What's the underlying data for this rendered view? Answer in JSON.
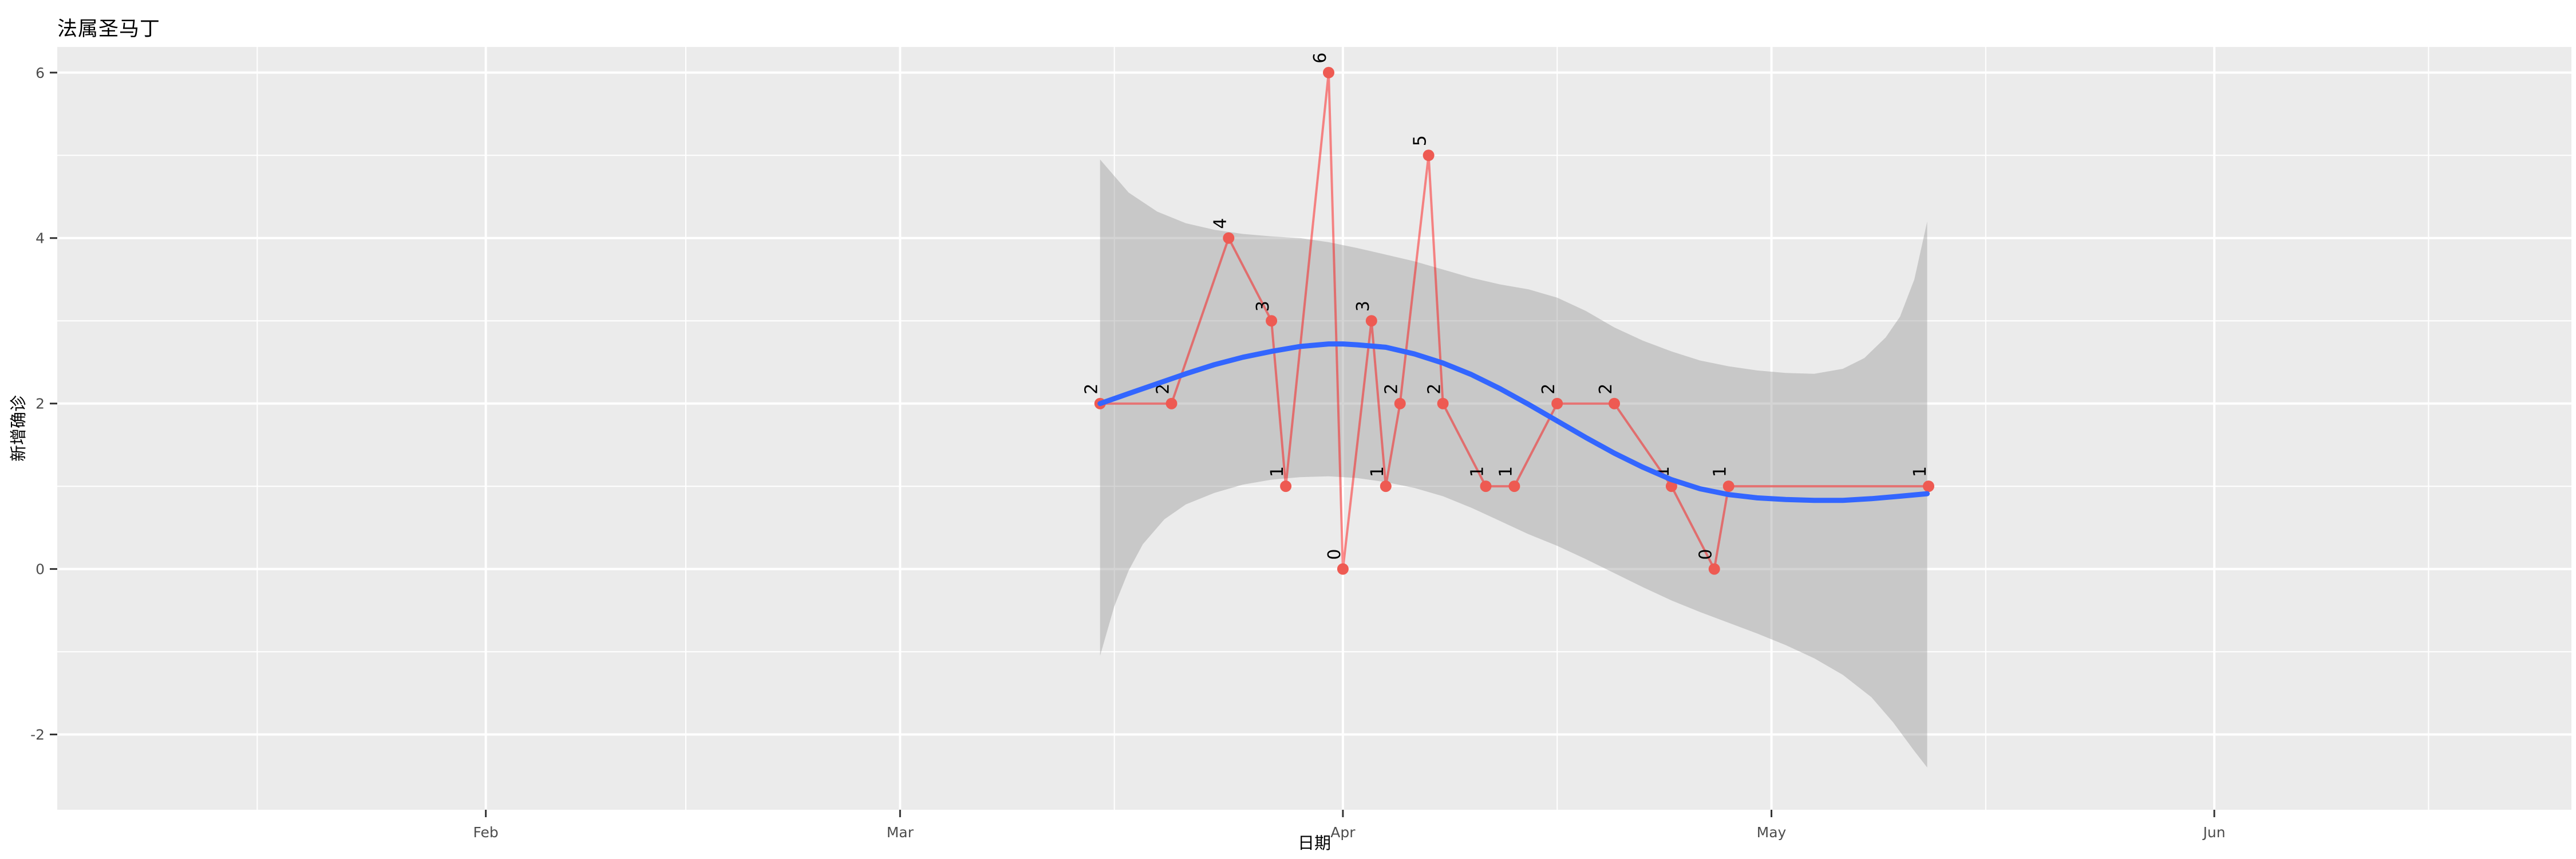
{
  "chart_data": {
    "type": "line",
    "title": "法属圣马丁",
    "xlabel": "日期",
    "ylabel": "新增确诊",
    "x_tick_labels": [
      "Feb",
      "Mar",
      "Apr",
      "May",
      "Jun"
    ],
    "x_tick_dates": [
      "2020-02-01",
      "2020-03-01",
      "2020-04-01",
      "2020-05-01",
      "2020-06-01"
    ],
    "x_minor_dates": [
      "2020-01-16",
      "2020-02-15",
      "2020-03-16",
      "2020-04-16",
      "2020-05-16",
      "2020-06-16"
    ],
    "xlim": [
      "2020-01-02",
      "2020-06-26"
    ],
    "y_ticks": [
      -2,
      0,
      2,
      4,
      6
    ],
    "y_minor": [
      -1,
      1,
      3,
      5
    ],
    "ylim": [
      -2.91,
      6.31
    ],
    "grid": "on",
    "legend": "none",
    "points": [
      {
        "date": "2020-03-15",
        "value": 2
      },
      {
        "date": "2020-03-20",
        "value": 2
      },
      {
        "date": "2020-03-24",
        "value": 4
      },
      {
        "date": "2020-03-27",
        "value": 3
      },
      {
        "date": "2020-03-28",
        "value": 1
      },
      {
        "date": "2020-03-31",
        "value": 6
      },
      {
        "date": "2020-04-01",
        "value": 0
      },
      {
        "date": "2020-04-03",
        "value": 3
      },
      {
        "date": "2020-04-04",
        "value": 1
      },
      {
        "date": "2020-04-05",
        "value": 2
      },
      {
        "date": "2020-04-07",
        "value": 5
      },
      {
        "date": "2020-04-08",
        "value": 2
      },
      {
        "date": "2020-04-11",
        "value": 1
      },
      {
        "date": "2020-04-13",
        "value": 1
      },
      {
        "date": "2020-04-16",
        "value": 2
      },
      {
        "date": "2020-04-20",
        "value": 2
      },
      {
        "date": "2020-04-24",
        "value": 1
      },
      {
        "date": "2020-04-27",
        "value": 0
      },
      {
        "date": "2020-04-28",
        "value": 1
      },
      {
        "date": "2020-05-12",
        "value": 1
      }
    ],
    "smooth_line_est": [
      [
        -17,
        2.0
      ],
      [
        -15,
        2.12
      ],
      [
        -13,
        2.24
      ],
      [
        -11,
        2.36
      ],
      [
        -9,
        2.47
      ],
      [
        -7,
        2.56
      ],
      [
        -5,
        2.63
      ],
      [
        -3,
        2.69
      ],
      [
        -1,
        2.72
      ],
      [
        0,
        2.72
      ],
      [
        1,
        2.71
      ],
      [
        3,
        2.68
      ],
      [
        5,
        2.6
      ],
      [
        7,
        2.49
      ],
      [
        9,
        2.35
      ],
      [
        11,
        2.18
      ],
      [
        13,
        1.99
      ],
      [
        15,
        1.79
      ],
      [
        17,
        1.59
      ],
      [
        19,
        1.4
      ],
      [
        21,
        1.23
      ],
      [
        23,
        1.08
      ],
      [
        25,
        0.97
      ],
      [
        27,
        0.9
      ],
      [
        29,
        0.86
      ],
      [
        31,
        0.84
      ],
      [
        33,
        0.83
      ],
      [
        35,
        0.83
      ],
      [
        37,
        0.85
      ],
      [
        39,
        0.88
      ],
      [
        40.9,
        0.91
      ]
    ],
    "ribbon_upper_est": [
      [
        -17,
        4.95
      ],
      [
        -15,
        4.55
      ],
      [
        -13,
        4.32
      ],
      [
        -11,
        4.18
      ],
      [
        -9,
        4.1
      ],
      [
        -7,
        4.05
      ],
      [
        -5,
        4.02
      ],
      [
        -3,
        4.0
      ],
      [
        -1,
        3.95
      ],
      [
        1,
        3.88
      ],
      [
        3,
        3.8
      ],
      [
        5,
        3.72
      ],
      [
        7,
        3.62
      ],
      [
        9,
        3.52
      ],
      [
        11,
        3.44
      ],
      [
        13,
        3.38
      ],
      [
        15,
        3.28
      ],
      [
        17,
        3.12
      ],
      [
        19,
        2.92
      ],
      [
        21,
        2.76
      ],
      [
        23,
        2.63
      ],
      [
        25,
        2.52
      ],
      [
        27,
        2.45
      ],
      [
        29,
        2.4
      ],
      [
        31,
        2.37
      ],
      [
        33,
        2.36
      ],
      [
        35,
        2.42
      ],
      [
        36.5,
        2.55
      ],
      [
        38,
        2.8
      ],
      [
        39,
        3.05
      ],
      [
        40,
        3.5
      ],
      [
        40.9,
        4.2
      ]
    ],
    "ribbon_lower_est": [
      [
        -17,
        -1.05
      ],
      [
        -16,
        -0.45
      ],
      [
        -15,
        -0.02
      ],
      [
        -14,
        0.3
      ],
      [
        -12.5,
        0.6
      ],
      [
        -11,
        0.78
      ],
      [
        -9,
        0.92
      ],
      [
        -7,
        1.02
      ],
      [
        -5,
        1.08
      ],
      [
        -3,
        1.11
      ],
      [
        -1,
        1.12
      ],
      [
        1,
        1.1
      ],
      [
        3,
        1.05
      ],
      [
        5,
        0.98
      ],
      [
        7,
        0.88
      ],
      [
        9,
        0.74
      ],
      [
        11,
        0.58
      ],
      [
        13,
        0.42
      ],
      [
        15,
        0.28
      ],
      [
        17,
        0.12
      ],
      [
        19,
        -0.05
      ],
      [
        21,
        -0.22
      ],
      [
        23,
        -0.38
      ],
      [
        25,
        -0.52
      ],
      [
        27,
        -0.65
      ],
      [
        29,
        -0.78
      ],
      [
        31,
        -0.92
      ],
      [
        33,
        -1.08
      ],
      [
        35,
        -1.28
      ],
      [
        37,
        -1.55
      ],
      [
        38.5,
        -1.85
      ],
      [
        40,
        -2.2
      ],
      [
        40.9,
        -2.4
      ]
    ],
    "smooth_ref_date": "2020-04-01",
    "colors": {
      "panel": "#EBEBEB",
      "grid": "#FFFFFF",
      "ribbon": "rgba(153,153,153,0.42)",
      "line": "rgba(255,0,0,0.45)",
      "point": "#EE5A52",
      "smooth": "#3366FF",
      "tick_text": "#4D4D4D",
      "tick_mark": "#333333",
      "label_text": "#000000",
      "title_text": "#000000"
    }
  }
}
